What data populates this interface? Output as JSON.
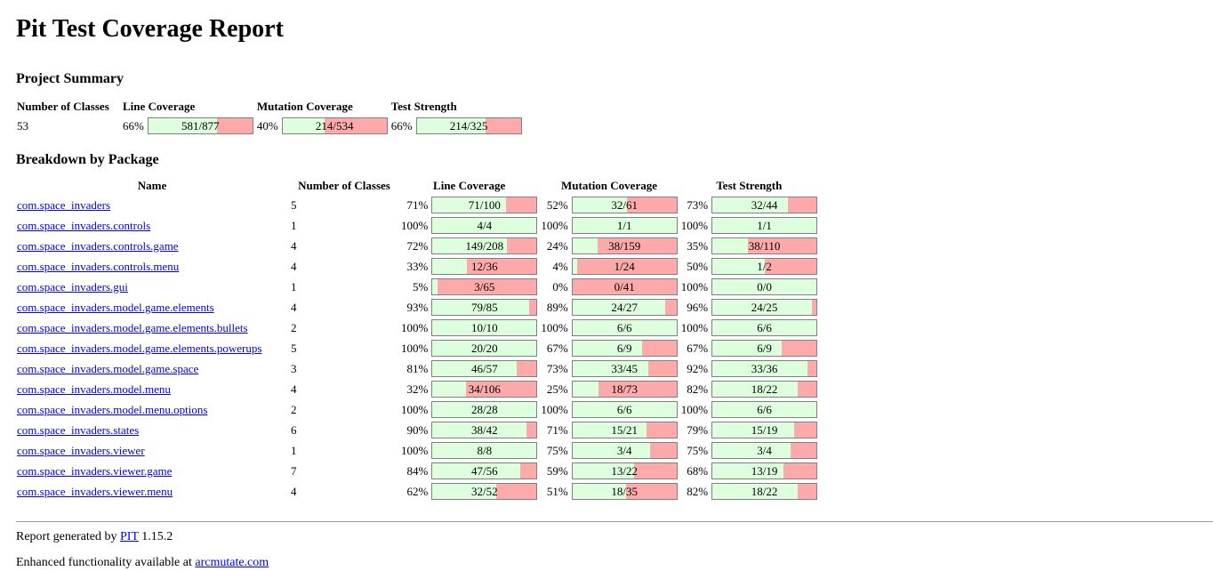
{
  "title": "Pit Test Coverage Report",
  "summary": {
    "heading": "Project Summary",
    "headers": [
      "Number of Classes",
      "Line Coverage",
      "Mutation Coverage",
      "Test Strength"
    ],
    "classes": "53",
    "line": {
      "pct": "66%",
      "text": "581/877",
      "ratio": 0.6625
    },
    "mutation": {
      "pct": "40%",
      "text": "214/534",
      "ratio": 0.4007
    },
    "strength": {
      "pct": "66%",
      "text": "214/325",
      "ratio": 0.6585
    }
  },
  "breakdown": {
    "heading": "Breakdown by Package",
    "headers": [
      "Name",
      "Number of Classes",
      "Line Coverage",
      "Mutation Coverage",
      "Test Strength"
    ],
    "packages": [
      {
        "name": "com.space_invaders",
        "classes": "5",
        "line": {
          "pct": "71%",
          "text": "71/100",
          "ratio": 0.71
        },
        "mutation": {
          "pct": "52%",
          "text": "32/61",
          "ratio": 0.5246
        },
        "strength": {
          "pct": "73%",
          "text": "32/44",
          "ratio": 0.7273
        }
      },
      {
        "name": "com.space_invaders.controls",
        "classes": "1",
        "line": {
          "pct": "100%",
          "text": "4/4",
          "ratio": 1
        },
        "mutation": {
          "pct": "100%",
          "text": "1/1",
          "ratio": 1
        },
        "strength": {
          "pct": "100%",
          "text": "1/1",
          "ratio": 1
        }
      },
      {
        "name": "com.space_invaders.controls.game",
        "classes": "4",
        "line": {
          "pct": "72%",
          "text": "149/208",
          "ratio": 0.7163
        },
        "mutation": {
          "pct": "24%",
          "text": "38/159",
          "ratio": 0.239
        },
        "strength": {
          "pct": "35%",
          "text": "38/110",
          "ratio": 0.3455
        }
      },
      {
        "name": "com.space_invaders.controls.menu",
        "classes": "4",
        "line": {
          "pct": "33%",
          "text": "12/36",
          "ratio": 0.3333
        },
        "mutation": {
          "pct": "4%",
          "text": "1/24",
          "ratio": 0.0417
        },
        "strength": {
          "pct": "50%",
          "text": "1/2",
          "ratio": 0.5
        }
      },
      {
        "name": "com.space_invaders.gui",
        "classes": "1",
        "line": {
          "pct": "5%",
          "text": "3/65",
          "ratio": 0.0462
        },
        "mutation": {
          "pct": "0%",
          "text": "0/41",
          "ratio": 0
        },
        "strength": {
          "pct": "100%",
          "text": "0/0",
          "ratio": 1
        }
      },
      {
        "name": "com.space_invaders.model.game.elements",
        "classes": "4",
        "line": {
          "pct": "93%",
          "text": "79/85",
          "ratio": 0.9294
        },
        "mutation": {
          "pct": "89%",
          "text": "24/27",
          "ratio": 0.8889
        },
        "strength": {
          "pct": "96%",
          "text": "24/25",
          "ratio": 0.96
        }
      },
      {
        "name": "com.space_invaders.model.game.elements.bullets",
        "classes": "2",
        "line": {
          "pct": "100%",
          "text": "10/10",
          "ratio": 1
        },
        "mutation": {
          "pct": "100%",
          "text": "6/6",
          "ratio": 1
        },
        "strength": {
          "pct": "100%",
          "text": "6/6",
          "ratio": 1
        }
      },
      {
        "name": "com.space_invaders.model.game.elements.powerups",
        "classes": "5",
        "line": {
          "pct": "100%",
          "text": "20/20",
          "ratio": 1
        },
        "mutation": {
          "pct": "67%",
          "text": "6/9",
          "ratio": 0.6667
        },
        "strength": {
          "pct": "67%",
          "text": "6/9",
          "ratio": 0.6667
        }
      },
      {
        "name": "com.space_invaders.model.game.space",
        "classes": "3",
        "line": {
          "pct": "81%",
          "text": "46/57",
          "ratio": 0.807
        },
        "mutation": {
          "pct": "73%",
          "text": "33/45",
          "ratio": 0.7333
        },
        "strength": {
          "pct": "92%",
          "text": "33/36",
          "ratio": 0.9167
        }
      },
      {
        "name": "com.space_invaders.model.menu",
        "classes": "4",
        "line": {
          "pct": "32%",
          "text": "34/106",
          "ratio": 0.3208
        },
        "mutation": {
          "pct": "25%",
          "text": "18/73",
          "ratio": 0.2466
        },
        "strength": {
          "pct": "82%",
          "text": "18/22",
          "ratio": 0.8182
        }
      },
      {
        "name": "com.space_invaders.model.menu.options",
        "classes": "2",
        "line": {
          "pct": "100%",
          "text": "28/28",
          "ratio": 1
        },
        "mutation": {
          "pct": "100%",
          "text": "6/6",
          "ratio": 1
        },
        "strength": {
          "pct": "100%",
          "text": "6/6",
          "ratio": 1
        }
      },
      {
        "name": "com.space_invaders.states",
        "classes": "6",
        "line": {
          "pct": "90%",
          "text": "38/42",
          "ratio": 0.9048
        },
        "mutation": {
          "pct": "71%",
          "text": "15/21",
          "ratio": 0.7143
        },
        "strength": {
          "pct": "79%",
          "text": "15/19",
          "ratio": 0.7895
        }
      },
      {
        "name": "com.space_invaders.viewer",
        "classes": "1",
        "line": {
          "pct": "100%",
          "text": "8/8",
          "ratio": 1
        },
        "mutation": {
          "pct": "75%",
          "text": "3/4",
          "ratio": 0.75
        },
        "strength": {
          "pct": "75%",
          "text": "3/4",
          "ratio": 0.75
        }
      },
      {
        "name": "com.space_invaders.viewer.game",
        "classes": "7",
        "line": {
          "pct": "84%",
          "text": "47/56",
          "ratio": 0.8393
        },
        "mutation": {
          "pct": "59%",
          "text": "13/22",
          "ratio": 0.5909
        },
        "strength": {
          "pct": "68%",
          "text": "13/19",
          "ratio": 0.6842
        }
      },
      {
        "name": "com.space_invaders.viewer.menu",
        "classes": "4",
        "line": {
          "pct": "62%",
          "text": "32/52",
          "ratio": 0.6154
        },
        "mutation": {
          "pct": "51%",
          "text": "18/35",
          "ratio": 0.5143
        },
        "strength": {
          "pct": "82%",
          "text": "18/22",
          "ratio": 0.8182
        }
      }
    ]
  },
  "footer": {
    "generated_prefix": "Report generated by ",
    "pit_link": "PIT",
    "version": " 1.15.2",
    "enhanced_prefix": "Enhanced functionality available at ",
    "arcmutate_link": "arcmutate.com"
  },
  "colors": {
    "covered": "#ddffdd",
    "uncovered": "#ffaaaa",
    "link": "#0000ee"
  }
}
